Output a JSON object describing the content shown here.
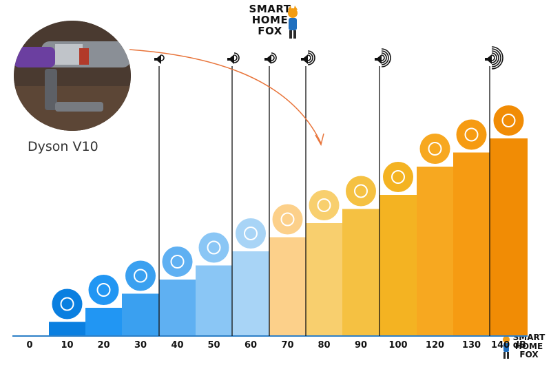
{
  "product": {
    "label": "Dyson V10"
  },
  "logo": {
    "line1": "SMART",
    "line2": "HOME",
    "line3": "FOX"
  },
  "colors": {
    "bars": [
      "#1a8fd8",
      "#0a7fe0",
      "#2196f3",
      "#3aa0f0",
      "#5fb0f2",
      "#8ac6f5",
      "#a8d4f6",
      "#fcd08a",
      "#f8cf6e",
      "#f5c142",
      "#f4b322",
      "#f7a820",
      "#f69b12",
      "#f18c05"
    ],
    "axis": "#2c7fc7",
    "arrow": "#e8743a",
    "speaker": "#111111"
  },
  "chart_data": {
    "type": "bar",
    "categories": [
      "0",
      "10",
      "20",
      "30",
      "40",
      "50",
      "60",
      "70",
      "80",
      "90",
      "100",
      "120",
      "130",
      "140 dB"
    ],
    "values": [
      0,
      10,
      20,
      30,
      40,
      50,
      60,
      70,
      80,
      90,
      100,
      120,
      130,
      140
    ],
    "icons": [
      "none",
      "lungs-icon",
      "leaves-icon",
      "whisper-icon",
      "fridge-icon",
      "rain-icon",
      "speech-bubbles-icon",
      "washing-machine-icon",
      "piano-icon",
      "hair-dryer-icon",
      "coffee-machine-icon",
      "trombone-icon",
      "police-car-icon",
      "fireworks-icon"
    ],
    "speaker_markers": [
      {
        "at": "30",
        "waves": 1
      },
      {
        "at": "50",
        "waves": 2
      },
      {
        "at": "60",
        "waves": 2
      },
      {
        "at": "70",
        "waves": 3
      },
      {
        "at": "90",
        "waves": 4
      },
      {
        "at": "130",
        "waves": 5
      }
    ],
    "ylim": [
      0,
      140
    ]
  }
}
